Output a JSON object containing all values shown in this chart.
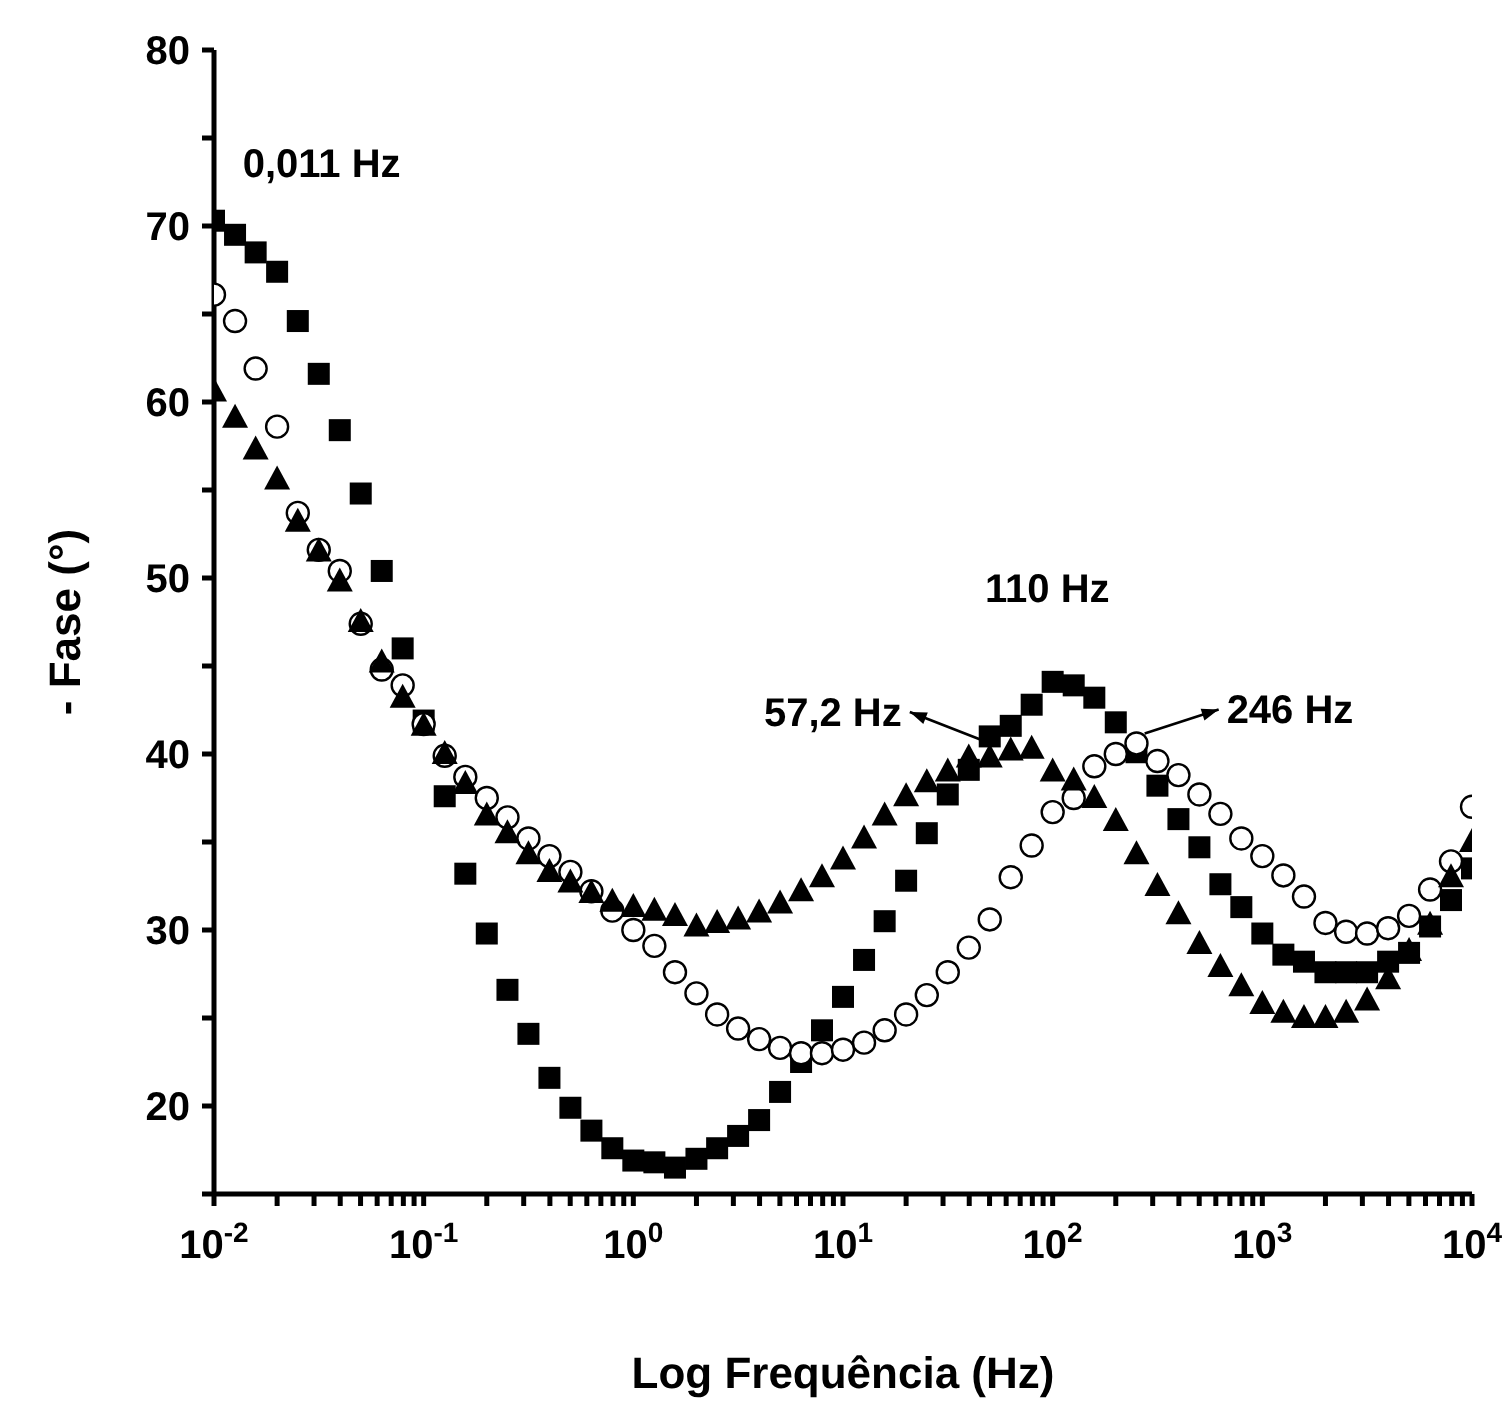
{
  "chart_data": {
    "type": "scatter",
    "xlabel": "Log Frequência (Hz)",
    "ylabel": "- Fase (°)",
    "log": "x",
    "grid": false,
    "legend": false,
    "xlim": [
      0.01,
      10000
    ],
    "ylim": [
      15,
      80
    ],
    "xticks": [
      {
        "value": 0.01,
        "label": "10$^{-2}$"
      },
      {
        "value": 0.02,
        "label": null
      },
      {
        "value": 0.03,
        "label": null
      },
      {
        "value": 0.04,
        "label": null
      },
      {
        "value": 0.05,
        "label": null
      },
      {
        "value": 0.06,
        "label": null
      },
      {
        "value": 0.07,
        "label": null
      },
      {
        "value": 0.08,
        "label": null
      },
      {
        "value": 0.09,
        "label": null
      },
      {
        "value": 0.1,
        "label": "10$^{-1}$"
      },
      {
        "value": 0.2,
        "label": null
      },
      {
        "value": 0.3,
        "label": null
      },
      {
        "value": 0.4,
        "label": null
      },
      {
        "value": 0.5,
        "label": null
      },
      {
        "value": 0.6,
        "label": null
      },
      {
        "value": 0.7,
        "label": null
      },
      {
        "value": 0.8,
        "label": null
      },
      {
        "value": 0.9,
        "label": null
      },
      {
        "value": 1,
        "label": "10$^{0}$"
      },
      {
        "value": 2,
        "label": null
      },
      {
        "value": 3,
        "label": null
      },
      {
        "value": 4,
        "label": null
      },
      {
        "value": 5,
        "label": null
      },
      {
        "value": 6,
        "label": null
      },
      {
        "value": 7,
        "label": null
      },
      {
        "value": 8,
        "label": null
      },
      {
        "value": 9,
        "label": null
      },
      {
        "value": 10,
        "label": "10$^{1}$"
      },
      {
        "value": 20,
        "label": null
      },
      {
        "value": 30,
        "label": null
      },
      {
        "value": 40,
        "label": null
      },
      {
        "value": 50,
        "label": null
      },
      {
        "value": 60,
        "label": null
      },
      {
        "value": 70,
        "label": null
      },
      {
        "value": 80,
        "label": null
      },
      {
        "value": 90,
        "label": null
      },
      {
        "value": 100,
        "label": "10$^{2}$"
      },
      {
        "value": 200,
        "label": null
      },
      {
        "value": 300,
        "label": null
      },
      {
        "value": 400,
        "label": null
      },
      {
        "value": 500,
        "label": null
      },
      {
        "value": 600,
        "label": null
      },
      {
        "value": 700,
        "label": null
      },
      {
        "value": 800,
        "label": null
      },
      {
        "value": 900,
        "label": null
      },
      {
        "value": 1000,
        "label": "10$^{3}$"
      },
      {
        "value": 2000,
        "label": null
      },
      {
        "value": 3000,
        "label": null
      },
      {
        "value": 4000,
        "label": null
      },
      {
        "value": 5000,
        "label": null
      },
      {
        "value": 6000,
        "label": null
      },
      {
        "value": 7000,
        "label": null
      },
      {
        "value": 8000,
        "label": null
      },
      {
        "value": 9000,
        "label": null
      },
      {
        "value": 10000,
        "label": "10$^{4}$"
      }
    ],
    "yticks": [
      {
        "value": 15,
        "label": null
      },
      20,
      {
        "value": 25,
        "label": null
      },
      30,
      {
        "value": 35,
        "label": null
      },
      40,
      {
        "value": 45,
        "label": null
      },
      50,
      {
        "value": 55,
        "label": null
      },
      60,
      {
        "value": 65,
        "label": null
      },
      70,
      {
        "value": 75,
        "label": null
      },
      80
    ],
    "x": [
      0.01,
      0.0126,
      0.0158,
      0.02,
      0.0251,
      0.0316,
      0.0398,
      0.0501,
      0.0631,
      0.0794,
      0.1,
      0.126,
      0.158,
      0.2,
      0.251,
      0.316,
      0.398,
      0.501,
      0.631,
      0.794,
      1,
      1.26,
      1.58,
      2,
      2.51,
      3.16,
      3.98,
      5.01,
      6.31,
      7.94,
      10,
      12.6,
      15.8,
      20,
      25.1,
      31.6,
      39.8,
      50.1,
      63.1,
      79.4,
      100,
      126,
      158,
      200,
      251,
      316,
      398,
      501,
      631,
      794,
      1000,
      1260,
      1580,
      2000,
      2510,
      3160,
      3980,
      5010,
      6310,
      7940,
      10000
    ],
    "series": [
      {
        "color": "#000000",
        "marker": "square",
        "values": [
          70.3,
          69.5,
          68.5,
          67.4,
          64.6,
          61.6,
          58.4,
          54.8,
          50.4,
          46.0,
          41.9,
          37.6,
          33.2,
          29.8,
          26.6,
          24.1,
          21.6,
          19.9,
          18.6,
          17.6,
          16.9,
          16.8,
          16.5,
          17.0,
          17.6,
          18.3,
          19.2,
          20.8,
          22.5,
          24.3,
          26.2,
          28.3,
          30.5,
          32.8,
          35.5,
          37.7,
          39.1,
          41.0,
          41.6,
          42.8,
          44.1,
          43.9,
          43.2,
          41.8,
          40.1,
          38.2,
          36.3,
          34.7,
          32.6,
          31.3,
          29.8,
          28.6,
          28.2,
          27.6,
          27.6,
          27.6,
          28.2,
          28.7,
          30.2,
          31.7,
          33.5
        ]
      },
      {
        "color": "#000000",
        "marker": "circle",
        "values": [
          66.1,
          64.6,
          61.9,
          58.6,
          53.7,
          51.6,
          50.4,
          47.4,
          44.8,
          43.9,
          41.7,
          39.9,
          38.7,
          37.5,
          36.4,
          35.2,
          34.2,
          33.3,
          32.2,
          31.1,
          30.0,
          29.1,
          27.6,
          26.4,
          25.2,
          24.4,
          23.8,
          23.3,
          23.0,
          23.0,
          23.2,
          23.6,
          24.3,
          25.2,
          26.3,
          27.6,
          29.0,
          30.6,
          33.0,
          34.8,
          36.7,
          37.5,
          39.3,
          40.0,
          40.6,
          39.6,
          38.8,
          37.7,
          36.6,
          35.2,
          34.2,
          33.1,
          31.9,
          30.4,
          29.9,
          29.8,
          30.1,
          30.8,
          32.3,
          33.9,
          37.0
        ]
      },
      {
        "color": "#000000",
        "marker": "triangle",
        "values": [
          60.6,
          59.1,
          57.3,
          55.6,
          53.2,
          51.5,
          49.8,
          47.5,
          45.2,
          43.2,
          41.6,
          40.0,
          38.3,
          36.5,
          35.5,
          34.3,
          33.3,
          32.7,
          32.1,
          31.6,
          31.3,
          31.1,
          30.8,
          30.2,
          30.4,
          30.6,
          31.0,
          31.5,
          32.2,
          33.0,
          34.0,
          35.2,
          36.5,
          37.6,
          38.4,
          39.0,
          39.8,
          39.8,
          40.2,
          40.3,
          39.0,
          38.5,
          37.5,
          36.2,
          34.3,
          32.5,
          30.9,
          29.2,
          27.9,
          26.8,
          25.8,
          25.3,
          25.0,
          25.0,
          25.3,
          26.0,
          27.2,
          28.8,
          30.3,
          33.0,
          35.0
        ]
      }
    ],
    "annotations": [
      {
        "text": "0,011 Hz",
        "x": 0.011,
        "y": 70.3
      },
      {
        "text": "110 Hz",
        "x": 110,
        "y": 44.1
      },
      {
        "text": "57,2 Hz",
        "x": 57.2,
        "y": 40.0
      },
      {
        "text": "246 Hz",
        "x": 246,
        "y": 40.6
      }
    ]
  }
}
